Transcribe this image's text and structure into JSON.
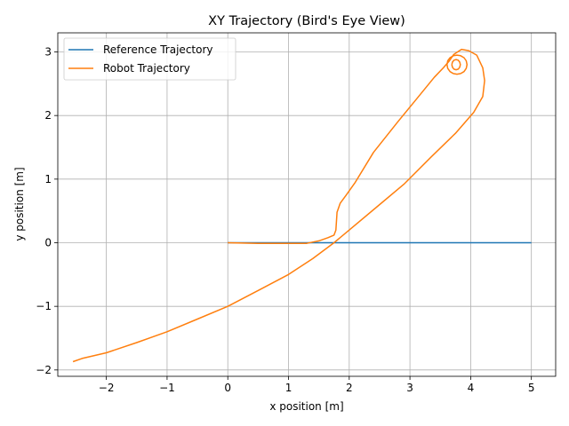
{
  "chart_data": {
    "type": "line",
    "title": "XY Trajectory (Bird's Eye View)",
    "xlabel": "x position [m]",
    "ylabel": "y position [m]",
    "xlim": [
      -2.8,
      5.4
    ],
    "ylim": [
      -2.1,
      3.3
    ],
    "xticks": [
      -2,
      -1,
      0,
      1,
      2,
      3,
      4,
      5
    ],
    "yticks": [
      -2,
      -1,
      0,
      1,
      2,
      3
    ],
    "xtick_labels": [
      "−2",
      "−1",
      "0",
      "1",
      "2",
      "3",
      "4",
      "5"
    ],
    "ytick_labels": [
      "−2",
      "−1",
      "0",
      "1",
      "2",
      "3"
    ],
    "grid": true,
    "legend_position": "top-left",
    "series": [
      {
        "name": "Reference Trajectory",
        "color": "#1f77b4",
        "x": [
          0,
          5
        ],
        "y": [
          0,
          0
        ]
      },
      {
        "name": "Robot Trajectory",
        "color": "#ff7f0e",
        "x": [
          0.0,
          0.5,
          1.0,
          1.3,
          1.5,
          1.65,
          1.75,
          1.78,
          1.79,
          1.8,
          1.85,
          1.95,
          2.1,
          2.4,
          2.8,
          3.1,
          3.4,
          3.55,
          3.65,
          3.72,
          3.85,
          3.97,
          4.1,
          4.2,
          4.23,
          4.2,
          4.05,
          3.75,
          3.35,
          2.9,
          2.5,
          2.0,
          1.75,
          1.4,
          1.0,
          0.5,
          0.0,
          -0.5,
          -1.0,
          -1.5,
          -2.0,
          -2.4,
          -2.55
        ],
        "y": [
          0.0,
          -0.01,
          -0.01,
          -0.01,
          0.03,
          0.08,
          0.12,
          0.2,
          0.35,
          0.48,
          0.62,
          0.75,
          0.95,
          1.42,
          1.9,
          2.25,
          2.6,
          2.75,
          2.86,
          2.96,
          3.04,
          3.02,
          2.95,
          2.75,
          2.55,
          2.3,
          2.05,
          1.72,
          1.35,
          0.92,
          0.6,
          0.2,
          0.0,
          -0.25,
          -0.5,
          -0.75,
          -1.0,
          -1.2,
          -1.4,
          -1.57,
          -1.73,
          -1.82,
          -1.87
        ]
      },
      {
        "name": "",
        "color": "#ff7f0e",
        "x": [
          3.61,
          3.623,
          3.66,
          3.715,
          3.775,
          3.835,
          3.89,
          3.927,
          3.94,
          3.927,
          3.89,
          3.835,
          3.775,
          3.715,
          3.66,
          3.623,
          3.61
        ],
        "y": [
          2.8,
          2.86,
          2.91,
          2.94,
          2.95,
          2.94,
          2.91,
          2.86,
          2.8,
          2.74,
          2.69,
          2.66,
          2.65,
          2.66,
          2.69,
          2.74,
          2.8
        ]
      },
      {
        "name": "",
        "color": "#ff7f0e",
        "x": [
          3.69,
          3.7,
          3.725,
          3.76,
          3.795,
          3.82,
          3.83,
          3.82,
          3.795,
          3.76,
          3.725,
          3.7,
          3.69
        ],
        "y": [
          2.8,
          2.84,
          2.87,
          2.88,
          2.87,
          2.84,
          2.8,
          2.76,
          2.73,
          2.72,
          2.73,
          2.76,
          2.8
        ]
      }
    ]
  }
}
